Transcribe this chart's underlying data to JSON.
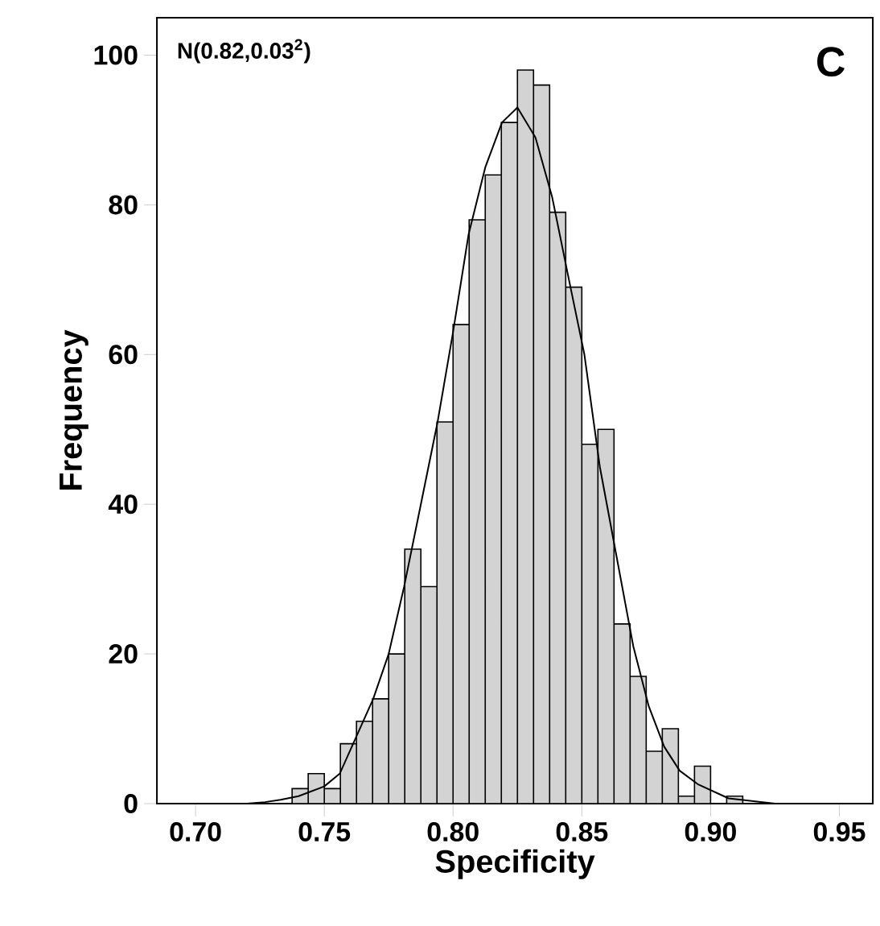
{
  "chart_data": {
    "type": "histogram",
    "xlabel": "Specificity",
    "ylabel": "Frequency",
    "annotations": [
      "N(0.82,0.03$^{2}$)",
      "C"
    ],
    "xlim": [
      0.685,
      0.963
    ],
    "ylim": [
      0,
      105
    ],
    "xticks": [
      {
        "value": 0.7,
        "label": "0.70"
      },
      {
        "value": 0.75,
        "label": "0.75"
      },
      {
        "value": 0.8,
        "label": "0.80"
      },
      {
        "value": 0.85,
        "label": "0.85"
      },
      {
        "value": 0.9,
        "label": "0.90"
      },
      {
        "value": 0.95,
        "label": "0.95"
      }
    ],
    "yticks": [
      0,
      20,
      40,
      60,
      80,
      100
    ],
    "grid": false,
    "series": [
      {
        "type": "histogram",
        "color": "#d3d3d3",
        "bins": [
          0.7375,
          0.74375,
          0.75,
          0.75625,
          0.7625,
          0.76875,
          0.775,
          0.78125,
          0.7875,
          0.79375,
          0.8,
          0.80625,
          0.8125,
          0.81875,
          0.825,
          0.83125,
          0.8375,
          0.84375,
          0.85,
          0.85625,
          0.8625,
          0.86875,
          0.875,
          0.88125,
          0.8875,
          0.89375,
          0.9,
          0.90625,
          0.9125
        ],
        "values": [
          2,
          4,
          2,
          8,
          11,
          14,
          20,
          34,
          29,
          51,
          64,
          78,
          84,
          91,
          98,
          96,
          79,
          69,
          48,
          50,
          24,
          17,
          7,
          10,
          1,
          5,
          0,
          1
        ]
      },
      {
        "type": "line",
        "color": "#000000",
        "x": [
          0.7,
          0.72,
          0.727,
          0.733,
          0.74,
          0.75,
          0.756,
          0.769,
          0.775,
          0.781,
          0.7875,
          0.794,
          0.8,
          0.806,
          0.8125,
          0.819,
          0.825,
          0.832,
          0.8385,
          0.845,
          0.851,
          0.857,
          0.8635,
          0.87,
          0.876,
          0.882,
          0.888,
          0.895,
          0.907,
          0.925,
          0.95
        ],
        "values": [
          0,
          0,
          0.2,
          0.5,
          1,
          2.3,
          4,
          14,
          20,
          29,
          40,
          51,
          63,
          76,
          85,
          91,
          93,
          89,
          81,
          70,
          60,
          45,
          33,
          21,
          13,
          7.6,
          4.4,
          2.6,
          0.7,
          0,
          0
        ]
      }
    ]
  }
}
